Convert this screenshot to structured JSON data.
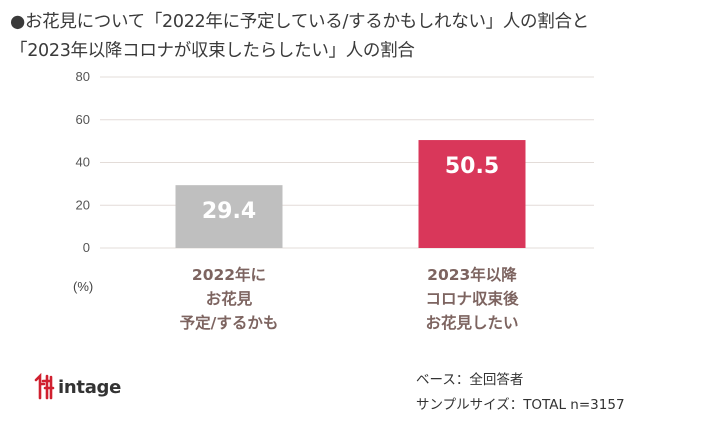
{
  "title": {
    "line1": "●お花見について「2022年に予定している/するかもしれない」人の割合と",
    "line2": "「2023年以降コロナが収束したらしたい」人の割合"
  },
  "chart_data": {
    "type": "bar",
    "categories": [
      "2022年に お花見 予定/するかも",
      "2023年以降 コロナ収束後 お花見したい"
    ],
    "category_lines": [
      [
        "2022年に",
        "お花見",
        "予定/するかも"
      ],
      [
        "2023年以降",
        "コロナ収束後",
        "お花見したい"
      ]
    ],
    "values": [
      29.4,
      50.5
    ],
    "value_labels": [
      "29.4",
      "50.5"
    ],
    "colors": [
      "#bfbfbf",
      "#d9375a"
    ],
    "ylim": [
      0,
      80
    ],
    "yticks": [
      0,
      20,
      40,
      60,
      80
    ],
    "ylabel": "(%)",
    "grid": true,
    "grid_color": "#e3dcd8"
  },
  "footer": {
    "logo_text": "intage",
    "base_line1": "ベース：全回答者",
    "base_line2": "サンプルサイズ：TOTAL n=3157"
  }
}
